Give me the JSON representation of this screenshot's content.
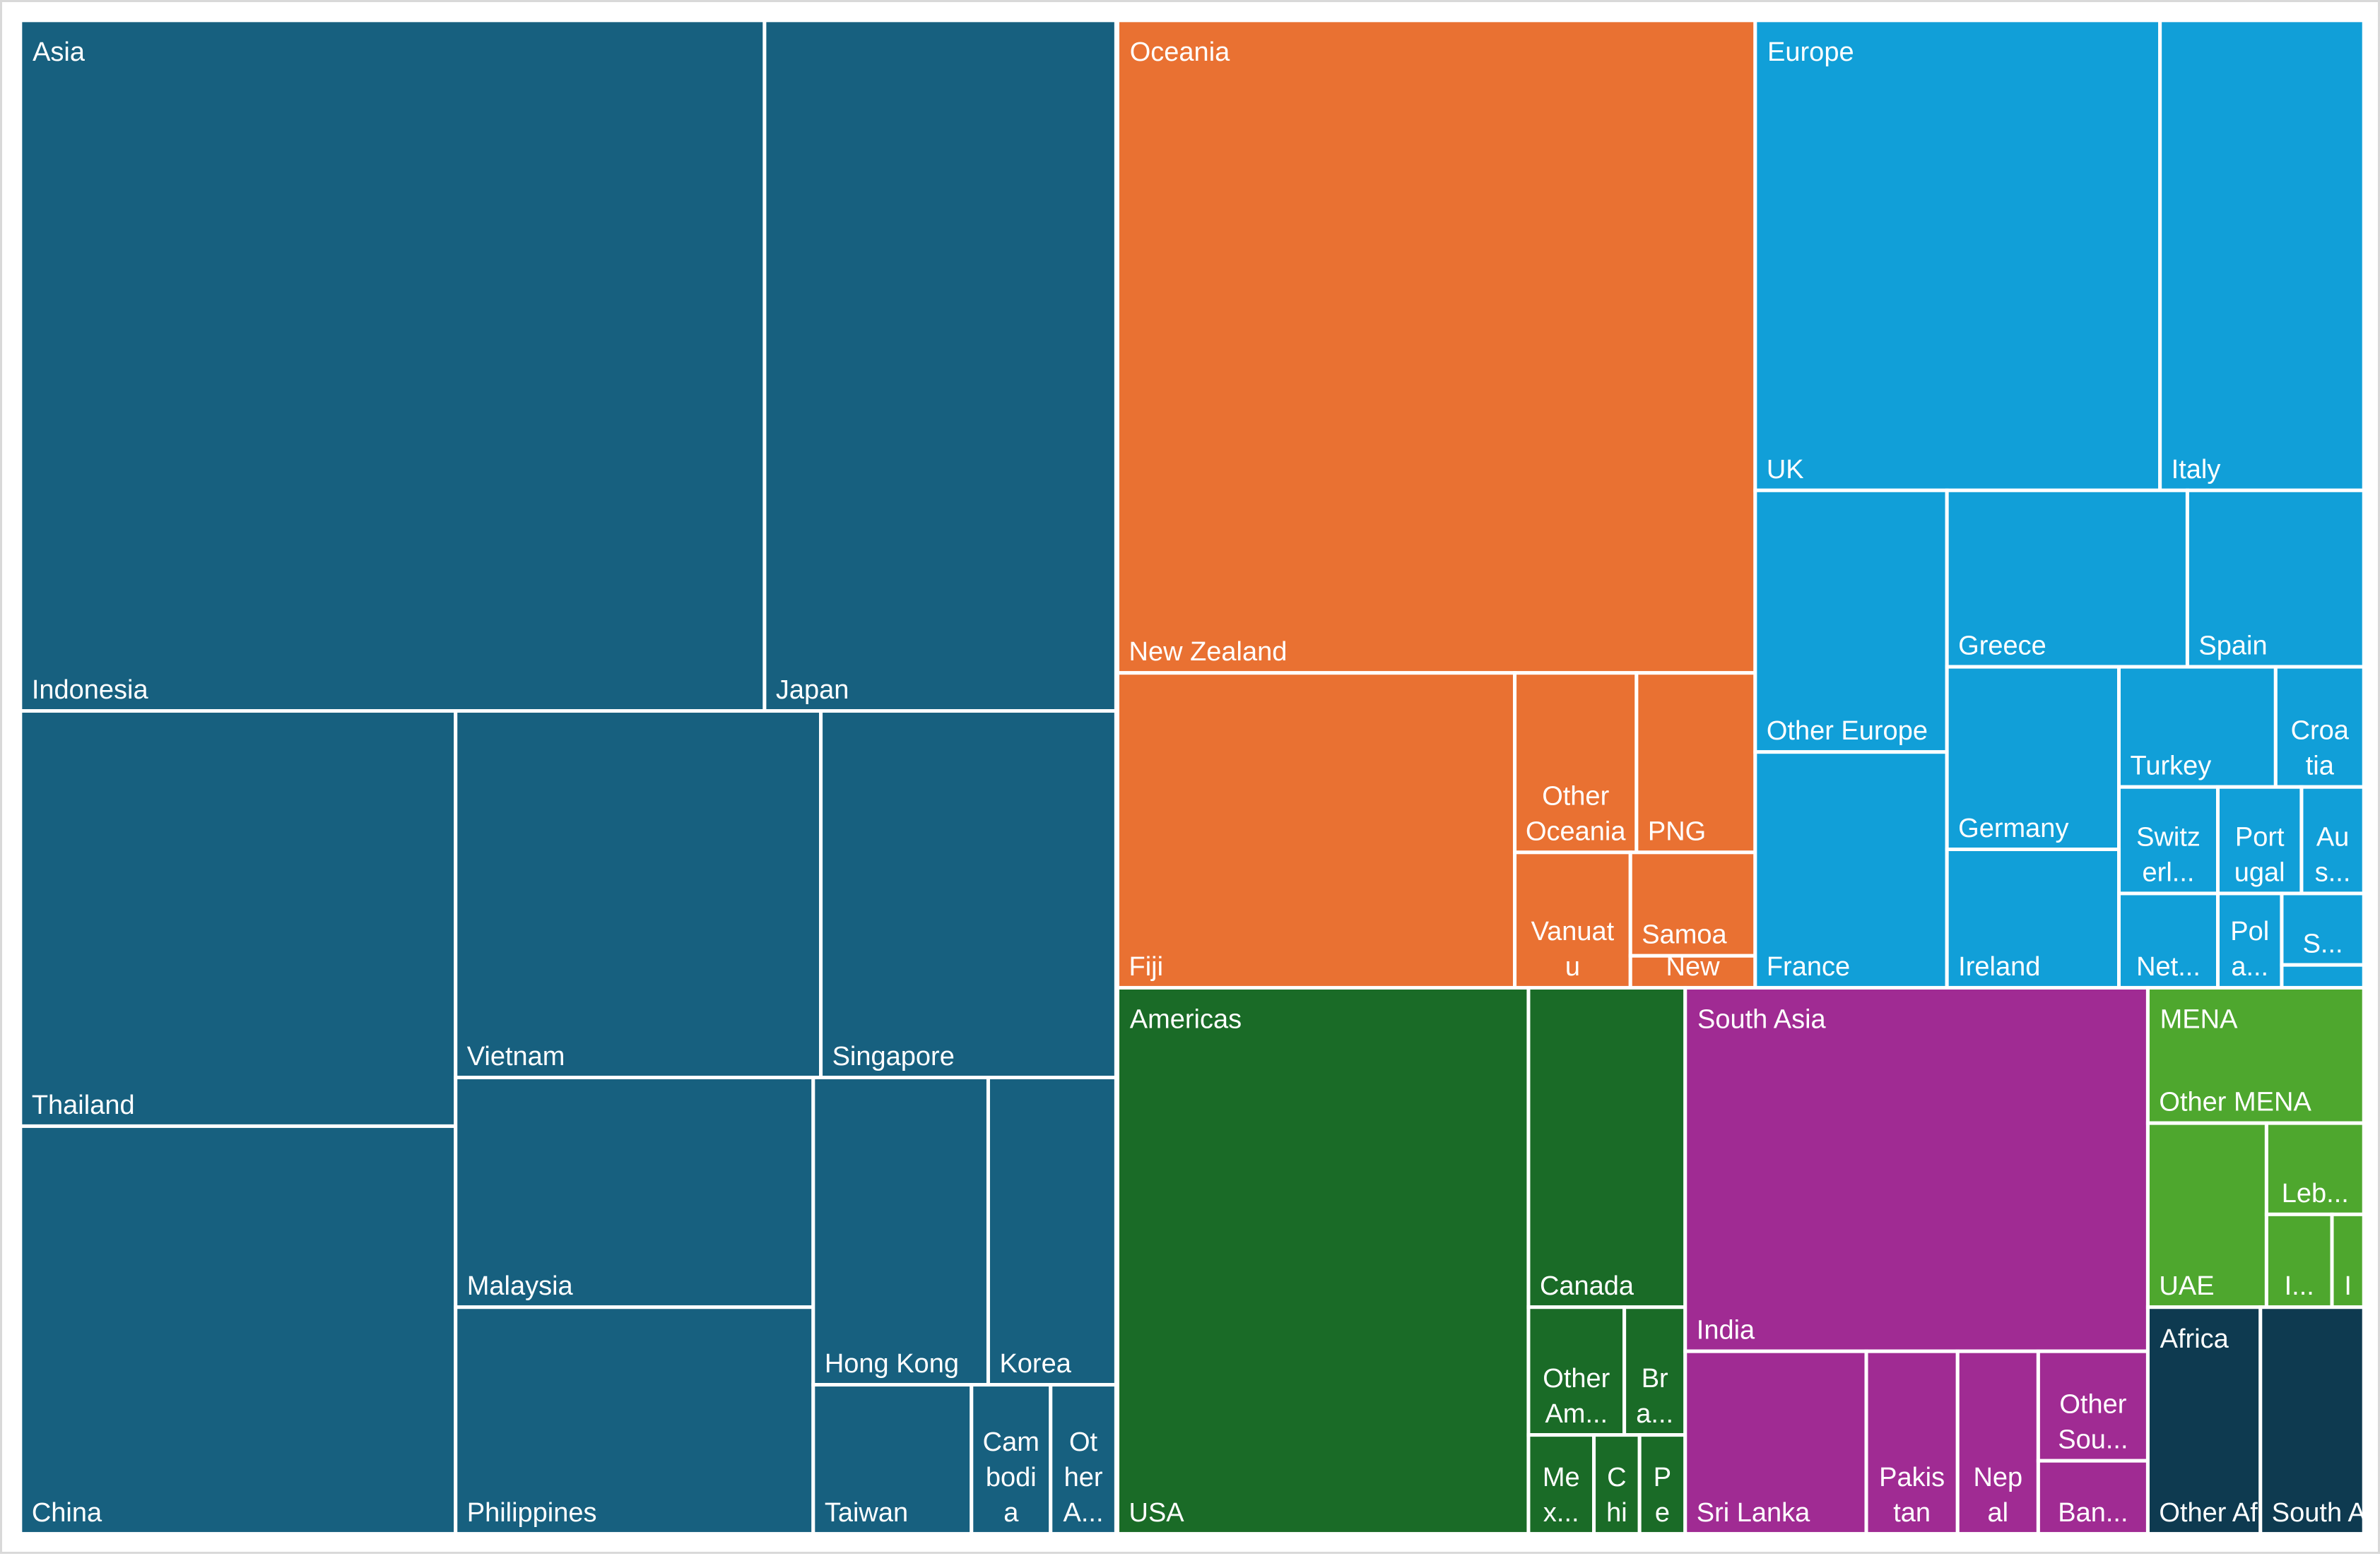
{
  "chart_data": {
    "type": "treemap",
    "title": "",
    "groups": [
      {
        "name": "Asia",
        "color": "#17607f",
        "items": [
          {
            "label": "Indonesia"
          },
          {
            "label": "Japan"
          },
          {
            "label": "Thailand"
          },
          {
            "label": "Vietnam"
          },
          {
            "label": "Singapore"
          },
          {
            "label": "China"
          },
          {
            "label": "Malaysia"
          },
          {
            "label": "Philippines"
          },
          {
            "label": "Hong Kong"
          },
          {
            "label": "Korea"
          },
          {
            "label": "Taiwan"
          },
          {
            "label": "Cam bodi a"
          },
          {
            "label": "Ot her A..."
          }
        ]
      },
      {
        "name": "Oceania",
        "color": "#e97132",
        "items": [
          {
            "label": "New Zealand"
          },
          {
            "label": "Fiji"
          },
          {
            "label": "Other Oceania"
          },
          {
            "label": "PNG"
          },
          {
            "label": "Vanuat u"
          },
          {
            "label": "Samoa"
          },
          {
            "label": "New"
          }
        ]
      },
      {
        "name": "Europe",
        "color": "#119fd8",
        "items": [
          {
            "label": "UK"
          },
          {
            "label": "Italy"
          },
          {
            "label": "Other Europe"
          },
          {
            "label": "Greece"
          },
          {
            "label": "Spain"
          },
          {
            "label": "France"
          },
          {
            "label": "Germany"
          },
          {
            "label": "Turkey"
          },
          {
            "label": "Croa tia"
          },
          {
            "label": "Switz erl..."
          },
          {
            "label": "Port ugal"
          },
          {
            "label": "Au s..."
          },
          {
            "label": "Ireland"
          },
          {
            "label": "Net..."
          },
          {
            "label": "Pol a..."
          },
          {
            "label": "S..."
          },
          {
            "label": ""
          }
        ]
      },
      {
        "name": "Americas",
        "color": "#1a6b27",
        "items": [
          {
            "label": "USA"
          },
          {
            "label": "Canada"
          },
          {
            "label": "Other Am..."
          },
          {
            "label": "Br a..."
          },
          {
            "label": "Me x..."
          },
          {
            "label": "C hi"
          },
          {
            "label": "P e"
          }
        ]
      },
      {
        "name": "South Asia",
        "color": "#a02b93",
        "items": [
          {
            "label": "India"
          },
          {
            "label": "Sri Lanka"
          },
          {
            "label": "Pakis tan"
          },
          {
            "label": "Nep al"
          },
          {
            "label": "Other Sou..."
          },
          {
            "label": "Ban..."
          }
        ]
      },
      {
        "name": "MENA",
        "color": "#4ea72e",
        "items": [
          {
            "label": "Other MENA"
          },
          {
            "label": "UAE"
          },
          {
            "label": "Leb..."
          },
          {
            "label": "I..."
          },
          {
            "label": "I"
          }
        ]
      },
      {
        "name": "Africa",
        "color": "#0e3a50",
        "items": [
          {
            "label": "Other Africa"
          },
          {
            "label": "South Africa"
          }
        ]
      }
    ]
  }
}
